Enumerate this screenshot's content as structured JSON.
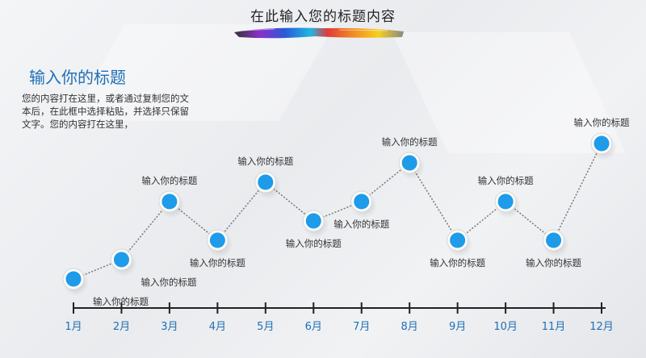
{
  "header": {
    "title": "在此输入您的标题内容"
  },
  "side": {
    "subtitle": "输入你的标题",
    "description": "您的内容打在这里，或者通过复制您的文本后，在此框中选择粘贴，并选择只保留文字。您的内容打在这里，"
  },
  "colors": {
    "accent": "#1f6fb5",
    "marker": "#1e9be9",
    "line": "#777777"
  },
  "chart_data": {
    "type": "line",
    "title": "",
    "categories": [
      "1月",
      "2月",
      "3月",
      "4月",
      "5月",
      "6月",
      "7月",
      "8月",
      "9月",
      "10月",
      "11月",
      "12月"
    ],
    "series": [
      {
        "values": [
          1,
          2,
          5,
          3,
          6,
          4,
          5,
          7,
          3,
          5,
          3,
          8
        ]
      }
    ],
    "point_labels": [
      "输入你的标题",
      "输入你的标题",
      "输入你的标题",
      "输入你的标题",
      "输入你的标题",
      "输入你的标题",
      "输入你的标题",
      "输入你的标题",
      "输入你的标题",
      "输入你的标题",
      "输入你的标题",
      "输入你的标题"
    ],
    "label_positions": [
      "below",
      "below",
      "above",
      "below",
      "above",
      "below",
      "below",
      "above",
      "below",
      "above",
      "below",
      "above"
    ],
    "grid": false,
    "legend": "none"
  }
}
